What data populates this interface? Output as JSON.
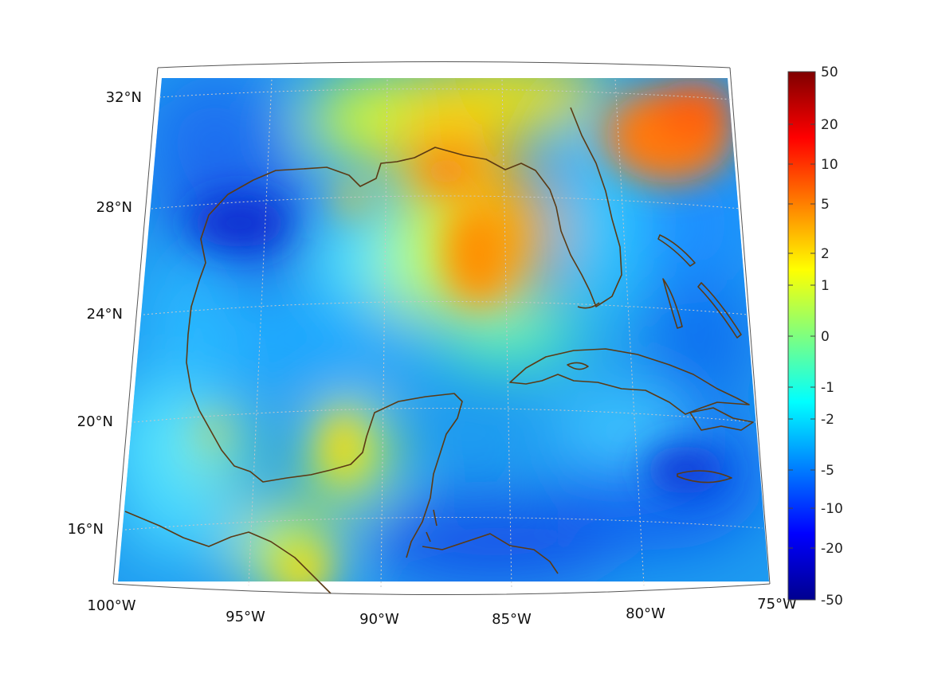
{
  "map": {
    "projection": "conic",
    "lon_range": [
      -100,
      -75
    ],
    "lat_range": [
      14,
      33
    ],
    "graticule": {
      "lines": "dotted",
      "color": "#c8c8c8"
    },
    "lon_labels": [
      "100°W",
      "95°W",
      "90°W",
      "85°W",
      "80°W",
      "75°W"
    ],
    "lat_labels": [
      "16°N",
      "20°N",
      "24°N",
      "28°N",
      "32°N"
    ],
    "coastline_color": "#5b3a14",
    "colormap": "jet",
    "field_regions": [
      {
        "name": "Northeast Atlantic high",
        "level": "orange-red"
      },
      {
        "name": "Eastern Gulf / West Florida shelf",
        "level": "orange"
      },
      {
        "name": "Northern Gulf coast",
        "level": "yellow"
      },
      {
        "name": "Western Gulf",
        "level": "blue"
      },
      {
        "name": "Caribbean",
        "level": "blue"
      }
    ]
  },
  "colorbar": {
    "position": "right",
    "tick_labels": [
      "50",
      "20",
      "10",
      "5",
      "2",
      "1",
      "0",
      "-1",
      "-2",
      "-5",
      "-10",
      "-20",
      "-50"
    ],
    "tick_values": [
      50,
      20,
      10,
      5,
      2,
      1,
      0,
      -1,
      -2,
      -5,
      -10,
      -20,
      -50
    ],
    "colors": [
      "#7f0000",
      "#ff0000",
      "#ff7f00",
      "#ffff00",
      "#7fff7f",
      "#00ffff",
      "#007fff",
      "#0000ff",
      "#00008f"
    ]
  }
}
